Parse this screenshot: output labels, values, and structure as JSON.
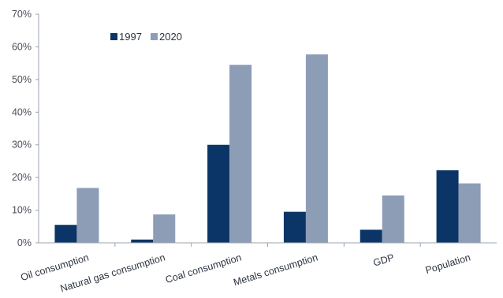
{
  "chart_data": {
    "type": "bar",
    "title": "",
    "xlabel": "",
    "ylabel": "",
    "categories": [
      "Oil consumption",
      "Natural gas consumption",
      "Coal consumption",
      "Metals consumption",
      "GDP",
      "Population"
    ],
    "series": [
      {
        "name": "1997",
        "color": "#0b3566",
        "values": [
          5.5,
          1.0,
          30.0,
          9.5,
          4.0,
          22.2
        ]
      },
      {
        "name": "2020",
        "color": "#8d9db6",
        "values": [
          16.8,
          8.7,
          54.5,
          57.7,
          14.5,
          18.2
        ]
      }
    ],
    "ylim": [
      0,
      70
    ],
    "ytick_labels": [
      "0%",
      "10%",
      "20%",
      "30%",
      "40%",
      "50%",
      "60%",
      "70%"
    ],
    "ytick_values": [
      0,
      10,
      20,
      30,
      40,
      50,
      60,
      70
    ],
    "grid": false,
    "legend_position": "top-left"
  }
}
